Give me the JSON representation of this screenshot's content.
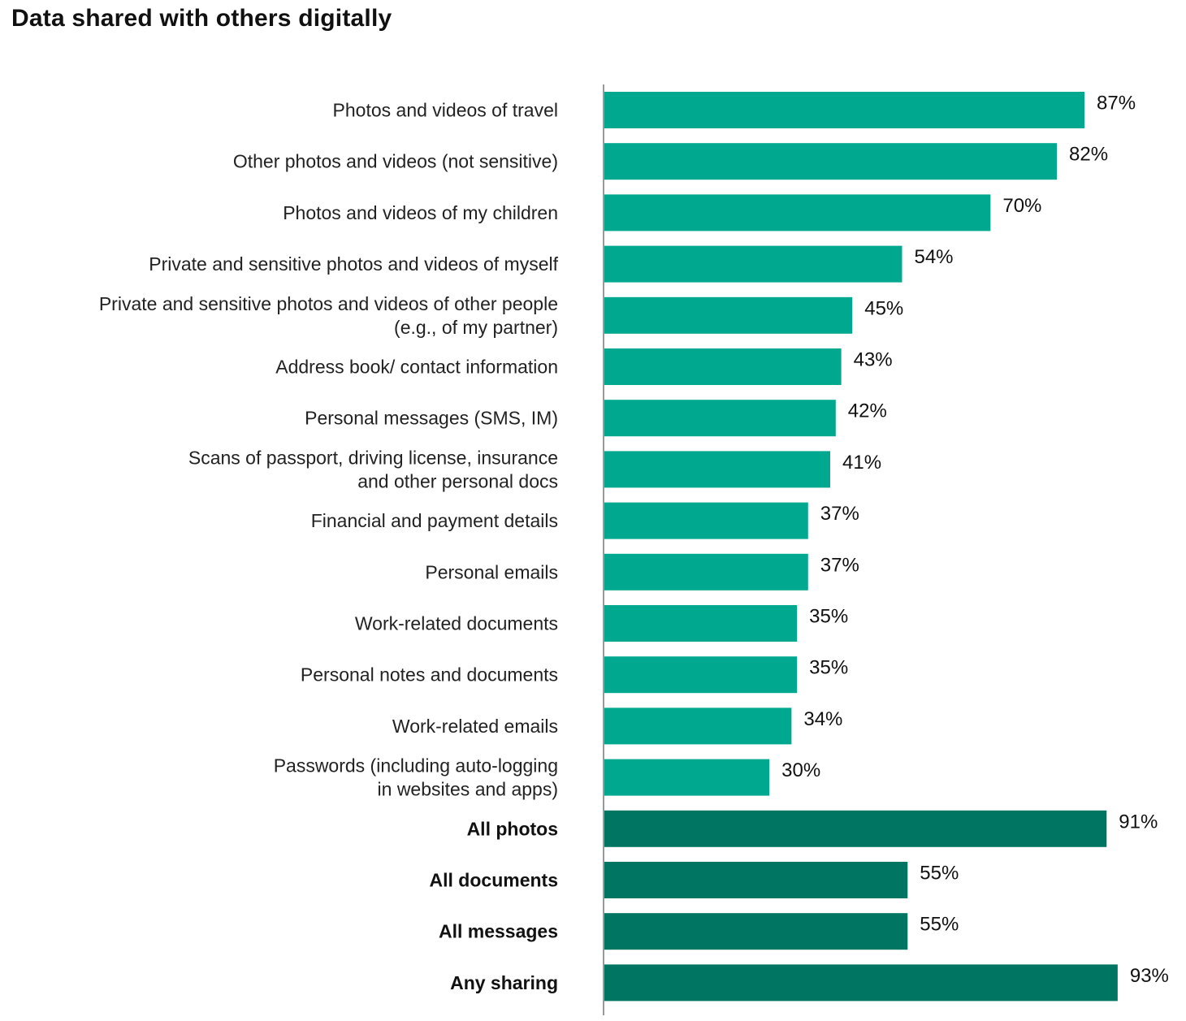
{
  "chart_data": {
    "type": "bar",
    "orientation": "horizontal",
    "title": "Data shared with others digitally",
    "xlabel": "",
    "ylabel": "",
    "xlim": [
      0,
      100
    ],
    "grid": false,
    "legend": "none",
    "value_suffix": "%",
    "colors": {
      "item": "#00a88f",
      "summary": "#007562",
      "axis": "#999999"
    },
    "categories": [
      [
        "Photos and videos of travel"
      ],
      [
        "Other photos and videos (not sensitive)"
      ],
      [
        "Photos and videos of my children"
      ],
      [
        "Private and sensitive photos and videos of myself"
      ],
      [
        "Private and sensitive photos and videos of other people",
        "(e.g., of my partner)"
      ],
      [
        "Address book/ contact information"
      ],
      [
        "Personal messages (SMS, IM)"
      ],
      [
        "Scans of passport, driving license, insurance",
        "and other personal docs"
      ],
      [
        "Financial and payment details"
      ],
      [
        "Personal emails"
      ],
      [
        "Work-related documents"
      ],
      [
        "Personal notes and documents"
      ],
      [
        "Work-related emails"
      ],
      [
        "Passwords (including auto-logging",
        "in websites and apps)"
      ],
      [
        "All photos"
      ],
      [
        "All documents"
      ],
      [
        "All messages"
      ],
      [
        "Any sharing"
      ]
    ],
    "values": [
      87,
      82,
      70,
      54,
      45,
      43,
      42,
      41,
      37,
      37,
      35,
      35,
      34,
      30,
      91,
      55,
      55,
      93
    ],
    "summary": [
      false,
      false,
      false,
      false,
      false,
      false,
      false,
      false,
      false,
      false,
      false,
      false,
      false,
      false,
      true,
      true,
      true,
      true
    ]
  }
}
